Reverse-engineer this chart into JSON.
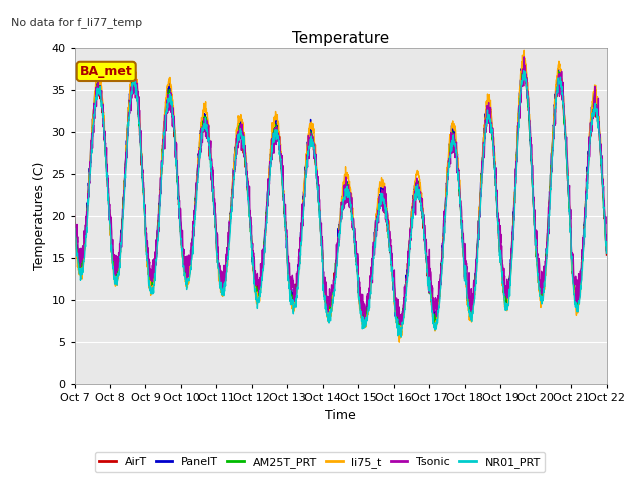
{
  "title": "Temperature",
  "no_data_text": "No data for f_li77_temp",
  "ylabel": "Temperatures (C)",
  "xlabel": "Time",
  "ylim": [
    0,
    40
  ],
  "yticks": [
    0,
    5,
    10,
    15,
    20,
    25,
    30,
    35,
    40
  ],
  "xtick_labels": [
    "Oct 7",
    "Oct 8",
    "Oct 9",
    "Oct 10",
    "Oct 11",
    "Oct 12",
    "Oct 13",
    "Oct 14",
    "Oct 15",
    "Oct 16",
    "Oct 17",
    "Oct 18",
    "Oct 19",
    "Oct 20",
    "Oct 21",
    "Oct 22"
  ],
  "legend_box_label": "BA_met",
  "legend_box_color": "#ffff00",
  "legend_box_edge": "#aa6600",
  "series": [
    {
      "name": "AirT",
      "color": "#cc0000",
      "lw": 1.0
    },
    {
      "name": "PanelT",
      "color": "#0000cc",
      "lw": 1.0
    },
    {
      "name": "AM25T_PRT",
      "color": "#00bb00",
      "lw": 1.0
    },
    {
      "name": "li75_t",
      "color": "#ffaa00",
      "lw": 1.0
    },
    {
      "name": "Tsonic",
      "color": "#aa00aa",
      "lw": 1.0
    },
    {
      "name": "NR01_PRT",
      "color": "#00cccc",
      "lw": 1.0
    }
  ],
  "plot_bg_color": "#e8e8e8",
  "fig_bg_color": "#ffffff",
  "grid_color": "#ffffff",
  "day_min": [
    14,
    13,
    12,
    13,
    12,
    11,
    10,
    9,
    8,
    7,
    8,
    9,
    10,
    11,
    10
  ],
  "day_max": [
    35,
    36,
    34,
    31,
    30,
    30,
    29,
    23,
    22,
    23,
    29,
    32,
    37,
    36,
    33
  ],
  "n_days": 15
}
